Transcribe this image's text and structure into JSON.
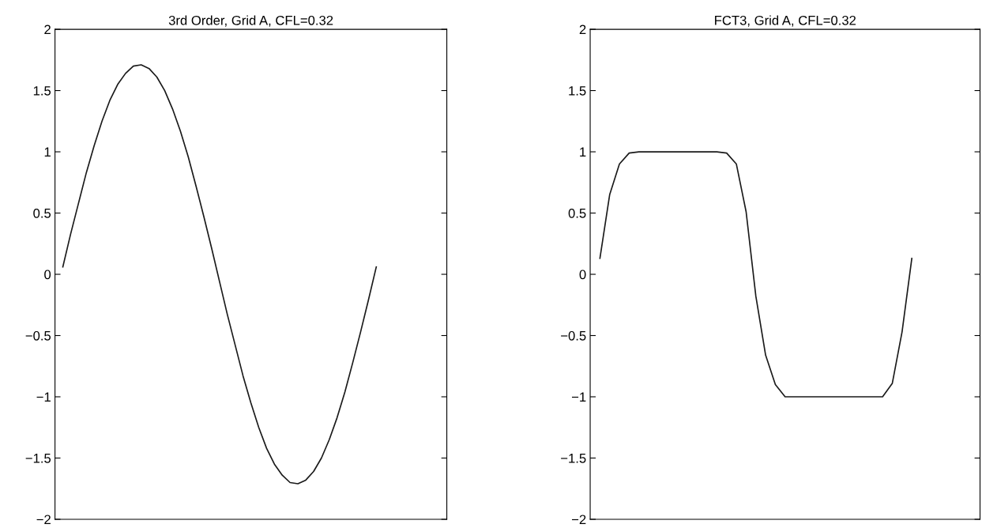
{
  "chart_data": [
    {
      "type": "line",
      "title": "3rd Order, Grid A, CFL=0.32",
      "categories": [
        null,
        null,
        null,
        null,
        null,
        null,
        null,
        null,
        null,
        null,
        null,
        null,
        null,
        null,
        null,
        null,
        null,
        null,
        null,
        null,
        null,
        null,
        null,
        null,
        null,
        null,
        null,
        null,
        null,
        null,
        null,
        null,
        null,
        null,
        null,
        null,
        null,
        null,
        null,
        null,
        null,
        null,
        null,
        null,
        null,
        null,
        null,
        null,
        null,
        null,
        null
      ],
      "ylim": [
        -2,
        2
      ],
      "yticks": [
        -2,
        -1.5,
        -1,
        -0.5,
        0,
        0.5,
        1,
        1.5,
        2
      ],
      "tick_labels": "y",
      "marker": "none",
      "line_style": "solid",
      "series": [
        {
          "color": "#1a1a1a",
          "values": [
            null,
            0.06,
            0.33,
            0.58,
            0.83,
            1.05,
            1.25,
            1.42,
            1.55,
            1.64,
            1.7,
            1.71,
            1.68,
            1.61,
            1.5,
            1.35,
            1.17,
            0.96,
            0.72,
            0.47,
            0.21,
            -0.06,
            -0.33,
            -0.58,
            -0.83,
            -1.05,
            -1.25,
            -1.42,
            -1.55,
            -1.64,
            -1.7,
            -1.71,
            -1.68,
            -1.61,
            -1.5,
            -1.35,
            -1.17,
            -0.96,
            -0.72,
            -0.47,
            -0.21,
            0.06,
            null,
            null,
            null,
            null,
            null,
            null,
            null,
            null,
            null
          ]
        }
      ]
    },
    {
      "type": "line",
      "title": "FCT3, Grid A, CFL=0.32",
      "categories": [
        null,
        null,
        null,
        null,
        null,
        null,
        null,
        null,
        null,
        null,
        null,
        null,
        null,
        null,
        null,
        null,
        null,
        null,
        null,
        null,
        null,
        null,
        null,
        null,
        null,
        null,
        null,
        null,
        null,
        null,
        null,
        null,
        null,
        null,
        null,
        null,
        null,
        null,
        null,
        null,
        null
      ],
      "ylim": [
        -2,
        2
      ],
      "yticks": [
        -2,
        -1.5,
        -1,
        -0.5,
        0,
        0.5,
        1,
        1.5,
        2
      ],
      "tick_labels": "y",
      "marker": "none",
      "line_style": "solid",
      "series": [
        {
          "color": "#1a1a1a",
          "values": [
            null,
            0.13,
            0.65,
            0.9,
            0.99,
            1.0,
            1.0,
            1.0,
            1.0,
            1.0,
            1.0,
            1.0,
            1.0,
            1.0,
            0.99,
            0.9,
            0.51,
            -0.18,
            -0.66,
            -0.9,
            -1.0,
            -1.0,
            -1.0,
            -1.0,
            -1.0,
            -1.0,
            -1.0,
            -1.0,
            -1.0,
            -1.0,
            -1.0,
            -0.89,
            -0.47,
            0.13,
            null,
            null,
            null,
            null,
            null,
            null,
            null
          ]
        }
      ]
    }
  ]
}
